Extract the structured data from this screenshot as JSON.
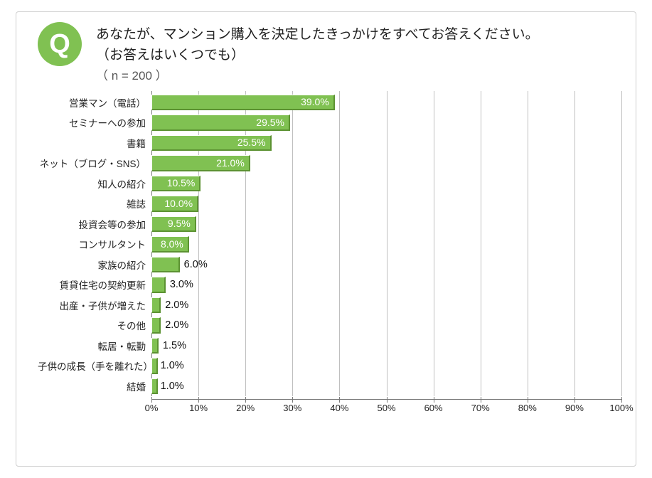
{
  "badge": {
    "letter": "Q",
    "bg": "#80c152",
    "fg": "#ffffff"
  },
  "title": {
    "line1": "あなたが、マンション購入を決定したきっかけをすべてお答えください。",
    "line2": "（お答えはいくつでも）",
    "n": "（ n = 200 ）"
  },
  "chart": {
    "type": "bar",
    "orientation": "horizontal",
    "xlim": [
      0,
      100
    ],
    "xtick_step": 10,
    "bar_fill": "#80c152",
    "bar_border": "#5c9232",
    "grid_color": "#bfbfbf",
    "background_color": "#ffffff",
    "label_fontsize": 13.5,
    "value_fontsize": 14,
    "value_inside_threshold": 7,
    "percent_suffix": "%",
    "categories": [
      "営業マン（電話）",
      "セミナーへの参加",
      "書籍",
      "ネット（ブログ・SNS）",
      "知人の紹介",
      "雑誌",
      "投資会等の参加",
      "コンサルタント",
      "家族の紹介",
      "賃貸住宅の契約更新",
      "出産・子供が増えた",
      "その他",
      "転居・転勤",
      "子供の成長（手を離れた）",
      "結婚"
    ],
    "values": [
      39.0,
      29.5,
      25.5,
      21.0,
      10.5,
      10.0,
      9.5,
      8.0,
      6.0,
      3.0,
      2.0,
      2.0,
      1.5,
      1.0,
      1.0
    ]
  }
}
